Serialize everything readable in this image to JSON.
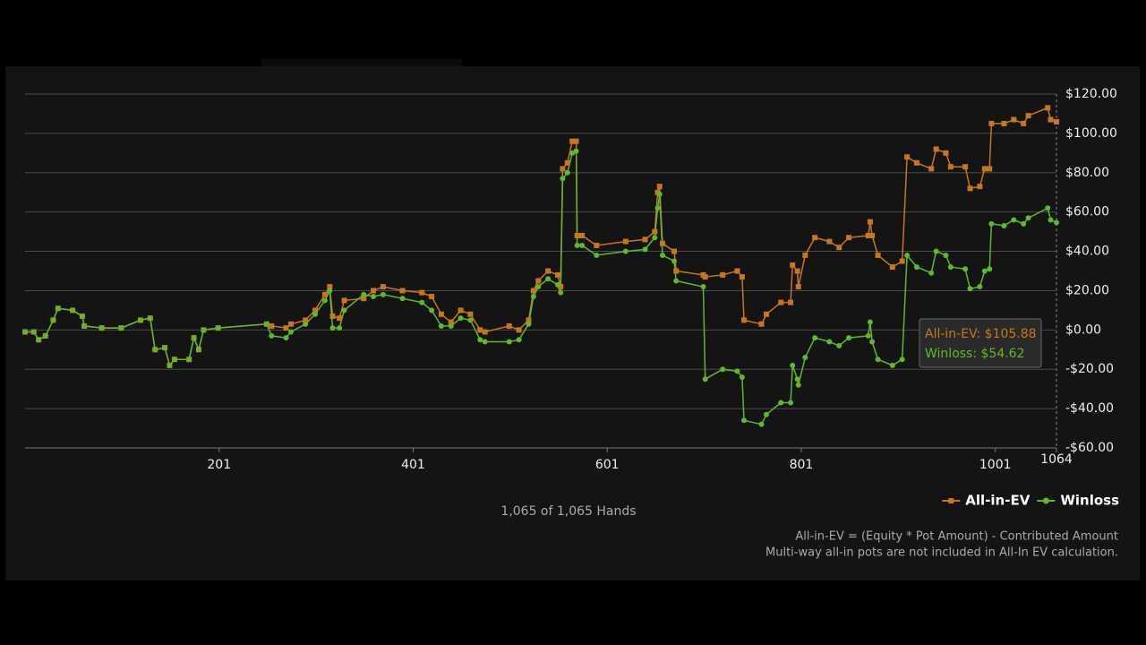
{
  "chart_data": {
    "type": "line",
    "x": [
      1,
      10,
      15,
      22,
      30,
      35,
      50,
      60,
      62,
      80,
      100,
      120,
      130,
      135,
      145,
      150,
      155,
      170,
      175,
      180,
      185,
      200,
      250,
      255,
      270,
      275,
      290,
      300,
      310,
      315,
      318,
      325,
      330,
      350,
      360,
      370,
      390,
      410,
      420,
      430,
      440,
      450,
      460,
      470,
      475,
      500,
      510,
      520,
      525,
      530,
      540,
      550,
      553,
      555,
      560,
      565,
      569,
      570,
      575,
      590,
      620,
      640,
      650,
      653,
      655,
      658,
      670,
      672,
      700,
      702,
      720,
      735,
      740,
      742,
      760,
      765,
      780,
      790,
      792,
      797,
      798,
      805,
      815,
      830,
      840,
      850,
      870,
      872,
      874,
      880,
      895,
      905,
      910,
      920,
      935,
      940,
      950,
      955,
      970,
      975,
      985,
      990,
      995,
      997,
      1010,
      1020,
      1030,
      1035,
      1055,
      1058,
      1064
    ],
    "series": [
      {
        "name": "All-in-EV",
        "color": "#c8761e",
        "marker": "square",
        "values": [
          -1,
          -1,
          -5,
          -3,
          5,
          11,
          10,
          7,
          2,
          1,
          1,
          5,
          6,
          -10,
          -9,
          -18,
          -15,
          -15,
          -4,
          -10,
          0,
          1,
          3,
          2,
          1,
          3,
          5,
          10,
          18,
          22,
          7,
          6,
          15,
          16,
          20,
          22,
          20,
          19,
          17,
          8,
          4,
          10,
          8,
          0,
          -1,
          2,
          0,
          5,
          20,
          25,
          30,
          28,
          22,
          82,
          85,
          96,
          96,
          48,
          48,
          43,
          45,
          46,
          50,
          70,
          73,
          44,
          40,
          30,
          28,
          27,
          28,
          30,
          27,
          5,
          3,
          8,
          14,
          14,
          33,
          30,
          22,
          38,
          47,
          45,
          42,
          47,
          48,
          55,
          48,
          38,
          32,
          35,
          88,
          85,
          82,
          92,
          90,
          83,
          83,
          72,
          73,
          82,
          82,
          105,
          105,
          107,
          105,
          109,
          113,
          107,
          105.88
        ]
      },
      {
        "name": "Winloss",
        "color": "#5fb82a",
        "marker": "circle",
        "values": [
          -1,
          -1,
          -5,
          -3,
          5,
          11,
          10,
          7,
          2,
          1,
          1,
          5,
          6,
          -10,
          -9,
          -18,
          -15,
          -15,
          -4,
          -10,
          0,
          1,
          3,
          -3,
          -4,
          -1,
          3,
          8,
          15,
          20,
          1,
          1,
          10,
          18,
          17,
          18,
          16,
          14,
          10,
          2,
          2,
          6,
          5,
          -5,
          -6,
          -6,
          -5,
          3,
          17,
          22,
          26,
          23,
          19,
          77,
          80,
          90,
          91,
          43,
          43,
          38,
          40,
          41,
          47,
          62,
          69,
          38,
          35,
          25,
          22,
          -25,
          -20,
          -21,
          -24,
          -46,
          -48,
          -43,
          -37,
          -37,
          -18,
          -25,
          -28,
          -14,
          -4,
          -6,
          -8,
          -4,
          -3,
          4,
          -6,
          -15,
          -18,
          -15,
          38,
          32,
          29,
          40,
          38,
          32,
          31,
          21,
          22,
          30,
          31,
          54,
          53,
          56,
          54,
          57,
          62,
          56,
          54.62
        ]
      }
    ],
    "xlim": [
      1,
      1064
    ],
    "xticks": [
      201,
      401,
      601,
      801,
      1001,
      1064
    ],
    "ylim": [
      -60,
      120
    ],
    "yticks": [
      {
        "value": -60,
        "label": "-$60.00"
      },
      {
        "value": -40,
        "label": "-$40.00"
      },
      {
        "value": -20,
        "label": "-$20.00"
      },
      {
        "value": 0,
        "label": "$0.00"
      },
      {
        "value": 20,
        "label": "$20.00"
      },
      {
        "value": 40,
        "label": "$40.00"
      },
      {
        "value": 60,
        "label": "$60.00"
      },
      {
        "value": 80,
        "label": "$80.00"
      },
      {
        "value": 100,
        "label": "$100.00"
      },
      {
        "value": 120,
        "label": "$120.00"
      }
    ],
    "grid": true,
    "legend": "bottom-right",
    "tooltip": [
      "All-in-EV: $105.88",
      "Winloss: $54.62"
    ],
    "subtitle": "1,065 of 1,065 Hands",
    "notes": [
      "All-in-EV = (Equity * Pot Amount) - Contributed Amount",
      "Multi-way all-in pots are not included in All-In EV calculation."
    ]
  }
}
